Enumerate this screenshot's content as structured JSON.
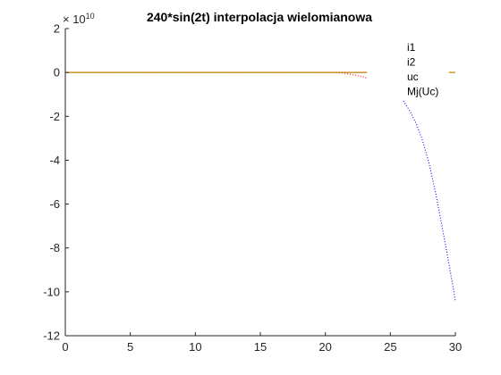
{
  "chart_data": {
    "type": "line",
    "title": "240*sin(2t) interpolacja wielomianowa",
    "xlabel": "",
    "ylabel": "",
    "xlim": [
      0,
      30
    ],
    "ylim": [
      -12,
      2
    ],
    "y_multiplier_text": "× 10",
    "y_multiplier_exp": "10",
    "x_ticks": [
      0,
      5,
      10,
      15,
      20,
      25,
      30
    ],
    "y_ticks": [
      -12,
      -10,
      -8,
      -6,
      -4,
      -2,
      0,
      2
    ],
    "grid": false,
    "legend_position": "top-right",
    "legend_entries": [
      "i1",
      "i2",
      "uc",
      "Mj(Uc)"
    ],
    "series": [
      {
        "name": "i1",
        "color": "#ff0000",
        "style": "dotted",
        "x": [
          0,
          20.6,
          21.0,
          21.5,
          22.0,
          22.5,
          23.0,
          23.2
        ],
        "y": [
          0,
          0,
          -0.01,
          -0.04,
          -0.09,
          -0.15,
          -0.22,
          -0.27
        ]
      },
      {
        "name": "i2",
        "color": "#0000ff",
        "style": "dotted",
        "x": [
          26.0,
          26.5,
          27.0,
          27.5,
          28.0,
          28.5,
          29.0,
          29.5,
          30.0
        ],
        "y": [
          -1.3,
          -1.75,
          -2.35,
          -3.15,
          -4.2,
          -5.55,
          -7.1,
          -8.7,
          -10.4
        ]
      },
      {
        "name": "uc",
        "color": "#bf7f00",
        "style": "solid",
        "x": [
          0,
          23.2
        ],
        "y": [
          0,
          0
        ]
      },
      {
        "name": "Mj(Uc)",
        "color": "#bf7f00",
        "style": "solid",
        "x": [
          29.5,
          30.0
        ],
        "y": [
          0,
          0
        ]
      }
    ]
  }
}
